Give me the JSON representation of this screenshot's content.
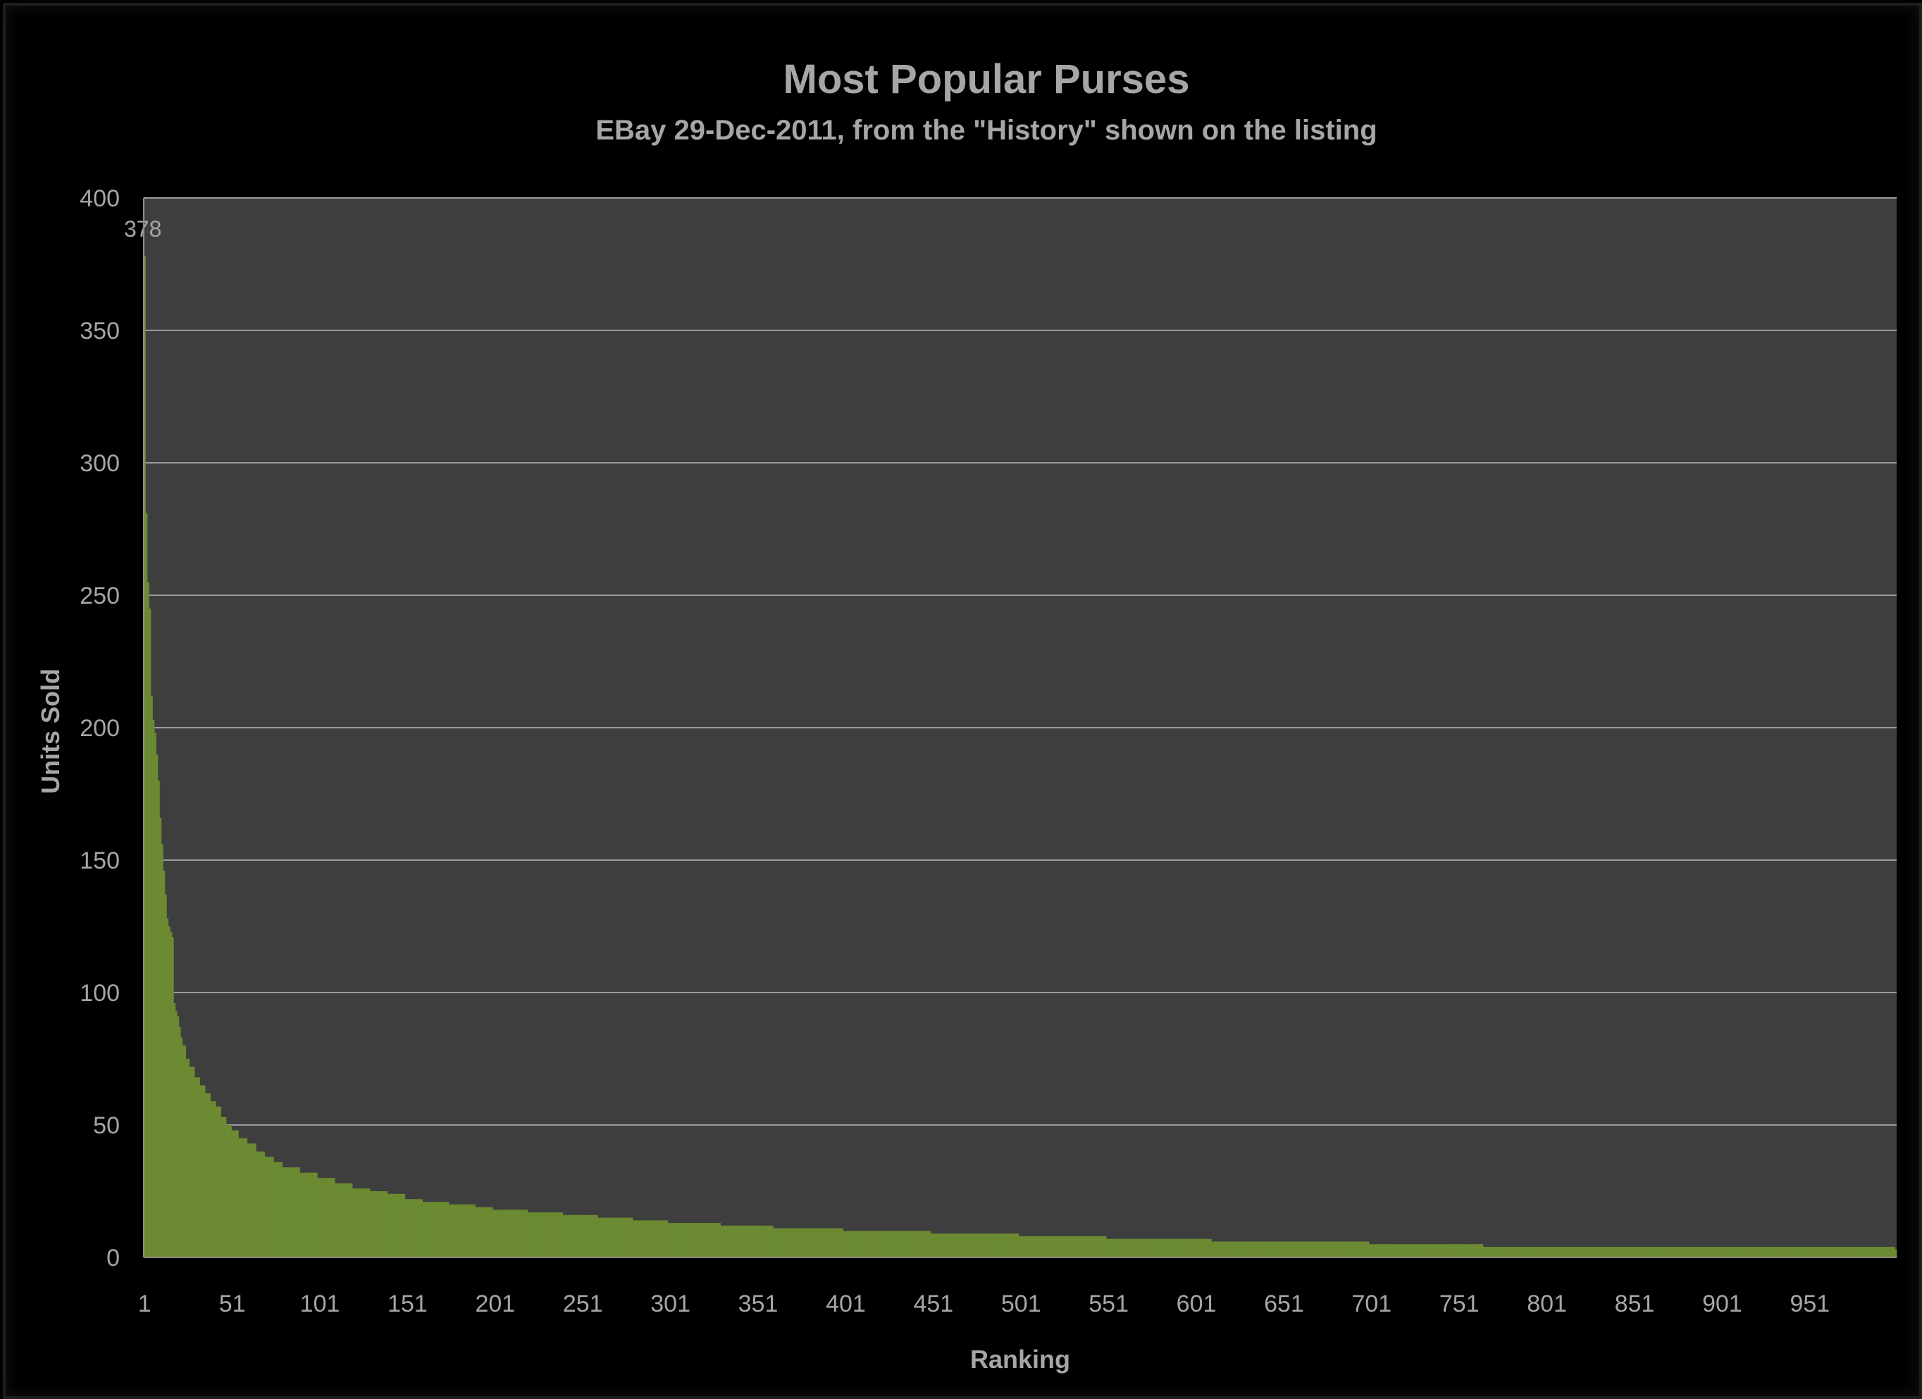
{
  "chart_data": {
    "type": "bar",
    "title": "Most Popular Purses",
    "subtitle": "EBay 29-Dec-2011, from the \"History\" shown on the listing",
    "xlabel": "Ranking",
    "ylabel": "Units Sold",
    "ylim": [
      0,
      400
    ],
    "yticks": [
      "0",
      "50",
      "100",
      "150",
      "200",
      "250",
      "300",
      "350",
      "400"
    ],
    "xticks": [
      "1",
      "51",
      "101",
      "151",
      "201",
      "251",
      "301",
      "351",
      "401",
      "451",
      "501",
      "551",
      "601",
      "651",
      "701",
      "751",
      "801",
      "851",
      "901",
      "951"
    ],
    "x_range": [
      1,
      1000
    ],
    "grid": true,
    "legend": "none",
    "data_labels": [
      {
        "x": 1,
        "text": "378"
      }
    ],
    "bar_color": "#6b8a32",
    "plot_background": "#3e3e3e",
    "series": [
      {
        "points": [
          [
            1,
            378
          ],
          [
            2,
            281
          ],
          [
            3,
            255
          ],
          [
            4,
            245
          ],
          [
            5,
            212
          ],
          [
            6,
            203
          ],
          [
            7,
            198
          ],
          [
            8,
            190
          ],
          [
            9,
            180
          ],
          [
            10,
            166
          ],
          [
            11,
            156
          ],
          [
            12,
            146
          ],
          [
            13,
            137
          ],
          [
            14,
            128
          ],
          [
            15,
            125
          ],
          [
            16,
            123
          ],
          [
            17,
            121
          ],
          [
            18,
            96
          ],
          [
            19,
            93
          ],
          [
            20,
            91
          ],
          [
            21,
            87
          ],
          [
            22,
            83
          ],
          [
            23,
            80
          ],
          [
            25,
            75
          ],
          [
            27,
            72
          ],
          [
            30,
            68
          ],
          [
            33,
            65
          ],
          [
            36,
            62
          ],
          [
            39,
            59
          ],
          [
            42,
            57
          ],
          [
            45,
            53
          ],
          [
            48,
            50
          ],
          [
            51,
            48
          ],
          [
            55,
            45
          ],
          [
            60,
            43
          ],
          [
            65,
            40
          ],
          [
            70,
            38
          ],
          [
            75,
            36
          ],
          [
            80,
            34
          ],
          [
            90,
            32
          ],
          [
            100,
            30
          ],
          [
            110,
            28
          ],
          [
            120,
            26
          ],
          [
            130,
            25
          ],
          [
            140,
            24
          ],
          [
            150,
            22
          ],
          [
            160,
            21
          ],
          [
            175,
            20
          ],
          [
            190,
            19
          ],
          [
            200,
            18
          ],
          [
            220,
            17
          ],
          [
            240,
            16
          ],
          [
            260,
            15
          ],
          [
            280,
            14
          ],
          [
            300,
            13
          ],
          [
            330,
            12
          ],
          [
            360,
            11
          ],
          [
            400,
            10
          ],
          [
            450,
            9
          ],
          [
            500,
            8
          ],
          [
            550,
            7
          ],
          [
            610,
            6
          ],
          [
            700,
            5
          ],
          [
            765,
            4
          ],
          [
            1000,
            3
          ]
        ]
      }
    ]
  }
}
